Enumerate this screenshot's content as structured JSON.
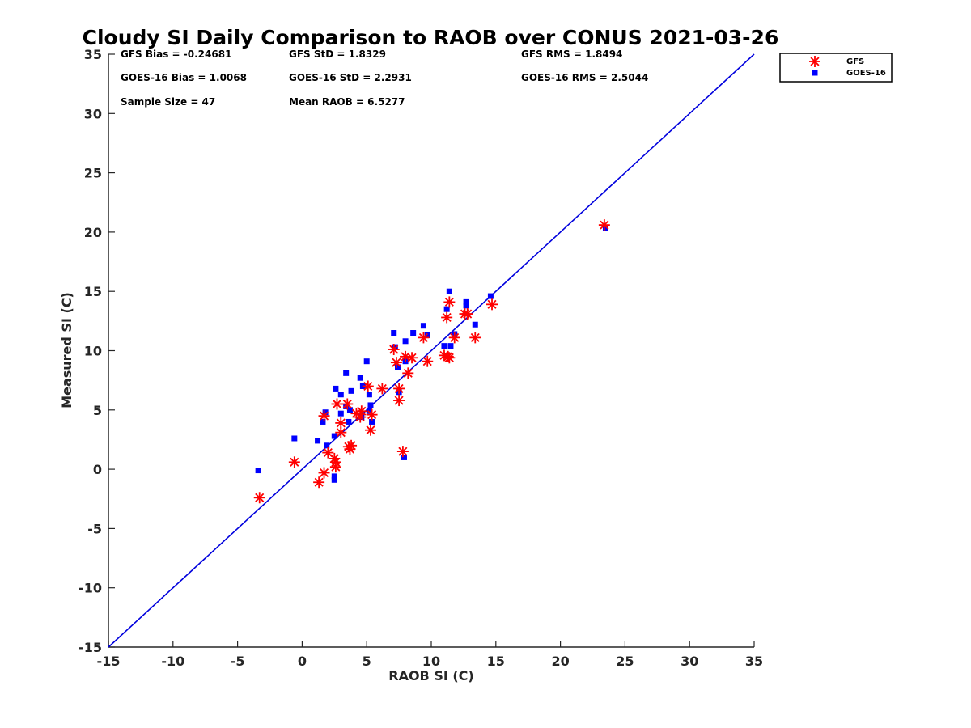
{
  "chart_data": {
    "type": "scatter",
    "title": "Cloudy SI Daily Comparison to RAOB over CONUS 2021-03-26",
    "xlabel": "RAOB SI (C)",
    "ylabel": "Measured SI (C)",
    "xlim": [
      -15,
      35
    ],
    "ylim": [
      -15,
      35
    ],
    "xticks": [
      "-15",
      "-10",
      "-5",
      "0",
      "5",
      "10",
      "15",
      "20",
      "25",
      "30",
      "35"
    ],
    "yticks": [
      "-15",
      "-10",
      "-5",
      "0",
      "5",
      "10",
      "15",
      "20",
      "25",
      "30",
      "35"
    ],
    "grid": false,
    "legend_position": "outside-top-right",
    "stats": [
      "GFS Bias = -0.24681",
      "GFS StD = 1.8329",
      "GFS RMS = 1.8494",
      "GOES-16 Bias = 1.0068",
      "GOES-16 StD = 2.2931",
      "GOES-16 RMS = 2.5044",
      "Sample Size = 47",
      "Mean RAOB = 6.5277"
    ],
    "reference_line": {
      "x": [
        -15,
        35
      ],
      "y": [
        -15,
        35
      ],
      "color": "#0000dd"
    },
    "series": [
      {
        "name": "GFS",
        "marker": "asterisk",
        "color": "#ff0000",
        "points": [
          [
            -3.3,
            -2.4
          ],
          [
            -0.6,
            0.6
          ],
          [
            1.3,
            -1.1
          ],
          [
            1.7,
            -0.3
          ],
          [
            1.7,
            4.5
          ],
          [
            2.0,
            1.4
          ],
          [
            2.5,
            0.9
          ],
          [
            2.6,
            0.2
          ],
          [
            2.6,
            0.6
          ],
          [
            2.7,
            5.5
          ],
          [
            3.0,
            3.9
          ],
          [
            3.0,
            3.1
          ],
          [
            3.5,
            5.5
          ],
          [
            3.6,
            1.9
          ],
          [
            3.7,
            1.7
          ],
          [
            3.8,
            2.0
          ],
          [
            4.2,
            4.7
          ],
          [
            4.5,
            4.4
          ],
          [
            4.6,
            4.9
          ],
          [
            5.1,
            7.0
          ],
          [
            5.3,
            3.3
          ],
          [
            5.4,
            4.6
          ],
          [
            6.2,
            6.8
          ],
          [
            7.1,
            10.1
          ],
          [
            7.3,
            9.0
          ],
          [
            7.5,
            5.8
          ],
          [
            7.5,
            6.8
          ],
          [
            7.8,
            1.5
          ],
          [
            8.0,
            9.5
          ],
          [
            8.2,
            8.1
          ],
          [
            8.5,
            9.4
          ],
          [
            9.4,
            11.1
          ],
          [
            9.7,
            9.1
          ],
          [
            11.0,
            9.6
          ],
          [
            11.2,
            12.8
          ],
          [
            11.3,
            9.5
          ],
          [
            11.4,
            14.1
          ],
          [
            11.4,
            9.4
          ],
          [
            11.8,
            11.1
          ],
          [
            12.6,
            13.1
          ],
          [
            12.8,
            13.1
          ],
          [
            13.4,
            11.1
          ],
          [
            14.7,
            13.9
          ],
          [
            23.4,
            20.6
          ]
        ]
      },
      {
        "name": "GOES-16",
        "marker": "square",
        "color": "#0000ff",
        "points": [
          [
            -3.4,
            -0.1
          ],
          [
            -0.6,
            2.6
          ],
          [
            1.2,
            2.4
          ],
          [
            1.6,
            4.0
          ],
          [
            1.8,
            4.8
          ],
          [
            1.9,
            2.0
          ],
          [
            2.5,
            -0.6
          ],
          [
            2.5,
            -0.9
          ],
          [
            2.5,
            2.8
          ],
          [
            2.6,
            6.8
          ],
          [
            3.0,
            6.3
          ],
          [
            3.0,
            4.7
          ],
          [
            3.4,
            8.1
          ],
          [
            3.4,
            5.3
          ],
          [
            3.6,
            4.0
          ],
          [
            3.7,
            5.0
          ],
          [
            3.8,
            6.6
          ],
          [
            4.5,
            7.7
          ],
          [
            4.6,
            4.4
          ],
          [
            4.7,
            7.0
          ],
          [
            5.0,
            9.1
          ],
          [
            5.2,
            6.3
          ],
          [
            5.2,
            4.9
          ],
          [
            5.3,
            5.4
          ],
          [
            5.4,
            4.0
          ],
          [
            7.1,
            11.5
          ],
          [
            7.2,
            10.3
          ],
          [
            7.4,
            8.6
          ],
          [
            7.5,
            6.5
          ],
          [
            7.9,
            1.0
          ],
          [
            8.0,
            10.8
          ],
          [
            8.0,
            9.1
          ],
          [
            8.6,
            11.5
          ],
          [
            9.4,
            12.1
          ],
          [
            9.7,
            11.3
          ],
          [
            11.0,
            10.4
          ],
          [
            11.2,
            13.5
          ],
          [
            11.4,
            15.0
          ],
          [
            11.5,
            10.4
          ],
          [
            11.8,
            11.4
          ],
          [
            12.7,
            13.8
          ],
          [
            12.7,
            14.1
          ],
          [
            13.4,
            12.2
          ],
          [
            14.6,
            14.6
          ],
          [
            23.5,
            20.3
          ]
        ]
      }
    ]
  }
}
